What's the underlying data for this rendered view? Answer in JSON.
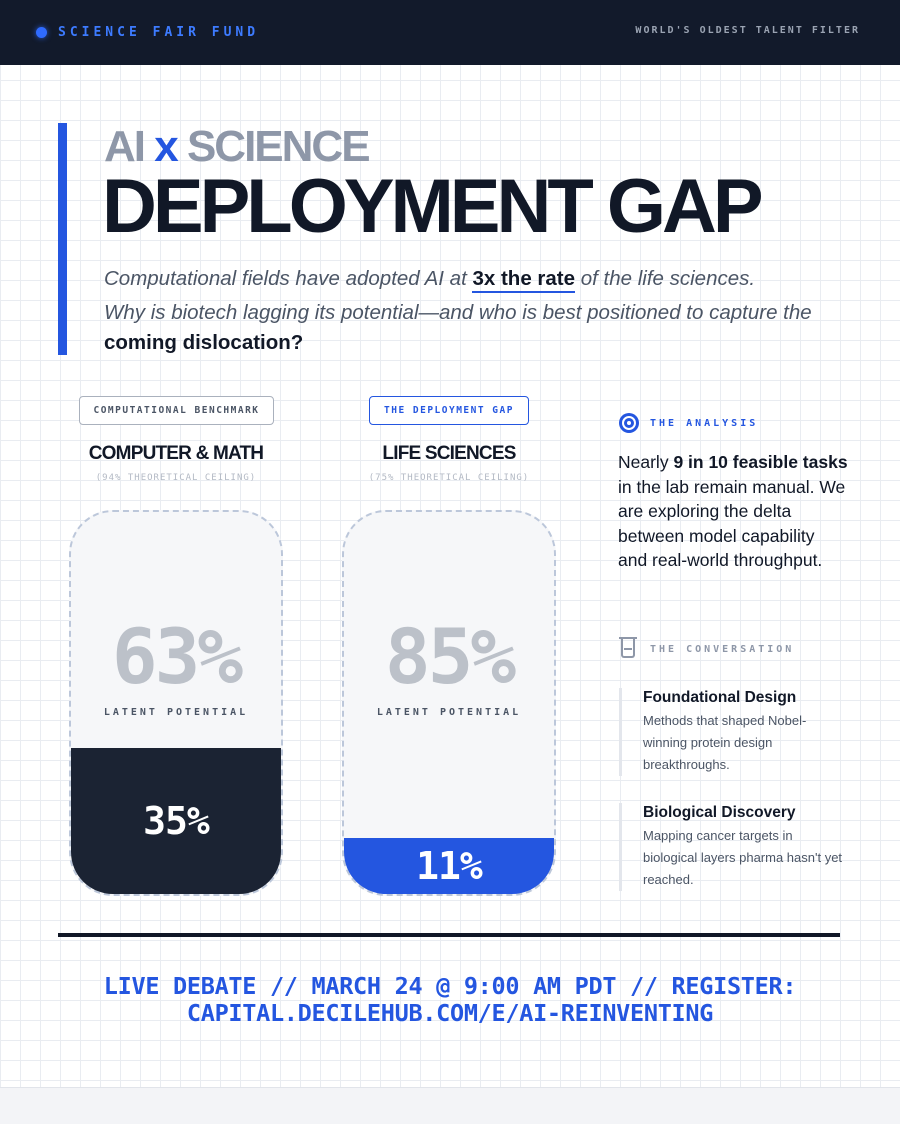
{
  "header": {
    "brand": "SCIENCE FAIR FUND",
    "tagline": "WORLD'S OLDEST TALENT FILTER"
  },
  "hero": {
    "kicker_left": "AI",
    "kicker_x": "x",
    "kicker_right": "SCIENCE",
    "title": "DEPLOYMENT GAP",
    "intro1_pre": "Computational fields have adopted AI at ",
    "intro1_bold": "3x the rate",
    "intro1_post": " of the life sciences.",
    "intro2_pre": "Why is biotech lagging its potential—and who is best positioned to capture the ",
    "intro2_bold": "coming dislocation?"
  },
  "comparison": [
    {
      "pill": "COMPUTATIONAL BENCHMARK",
      "title": "COMPUTER & MATH",
      "subtitle": "(94% THEORETICAL CEILING)",
      "latent_value": "63%",
      "latent_label": "LATENT POTENTIAL",
      "adopted_value": "35%",
      "adopted_fraction": 0.35
    },
    {
      "pill": "THE DEPLOYMENT GAP",
      "title": "LIFE SCIENCES",
      "subtitle": "(75% THEORETICAL CEILING)",
      "latent_value": "85%",
      "latent_label": "LATENT POTENTIAL",
      "adopted_value": "11%",
      "adopted_fraction": 0.11
    }
  ],
  "analysis": {
    "label": "THE ANALYSIS",
    "bold": "9 in 10 feasible tasks",
    "pre": "Nearly ",
    "post": " in the lab remain manual. We are exploring the delta between model capability and real-world throughput."
  },
  "conversation": {
    "label": "THE CONVERSATION",
    "items": [
      {
        "title": "Foundational Design",
        "desc": "Methods that shaped Nobel-winning protein design breakthroughs."
      },
      {
        "title": "Biological Discovery",
        "desc": "Mapping cancer targets in biological layers pharma hasn't yet reached."
      }
    ]
  },
  "cta": {
    "line1": "LIVE DEBATE // MARCH 24 @ 9:00 AM PDT // REGISTER:",
    "line2": "CAPITAL.DECILEHUB.COM/E/AI-REINVENTING"
  },
  "colors": {
    "accent": "#2456e0",
    "dark": "#121a2b",
    "muted": "#8e97a8"
  },
  "icons": {
    "analysis": "target-icon",
    "conversation": "beaker-icon",
    "brand": "dot-icon"
  }
}
